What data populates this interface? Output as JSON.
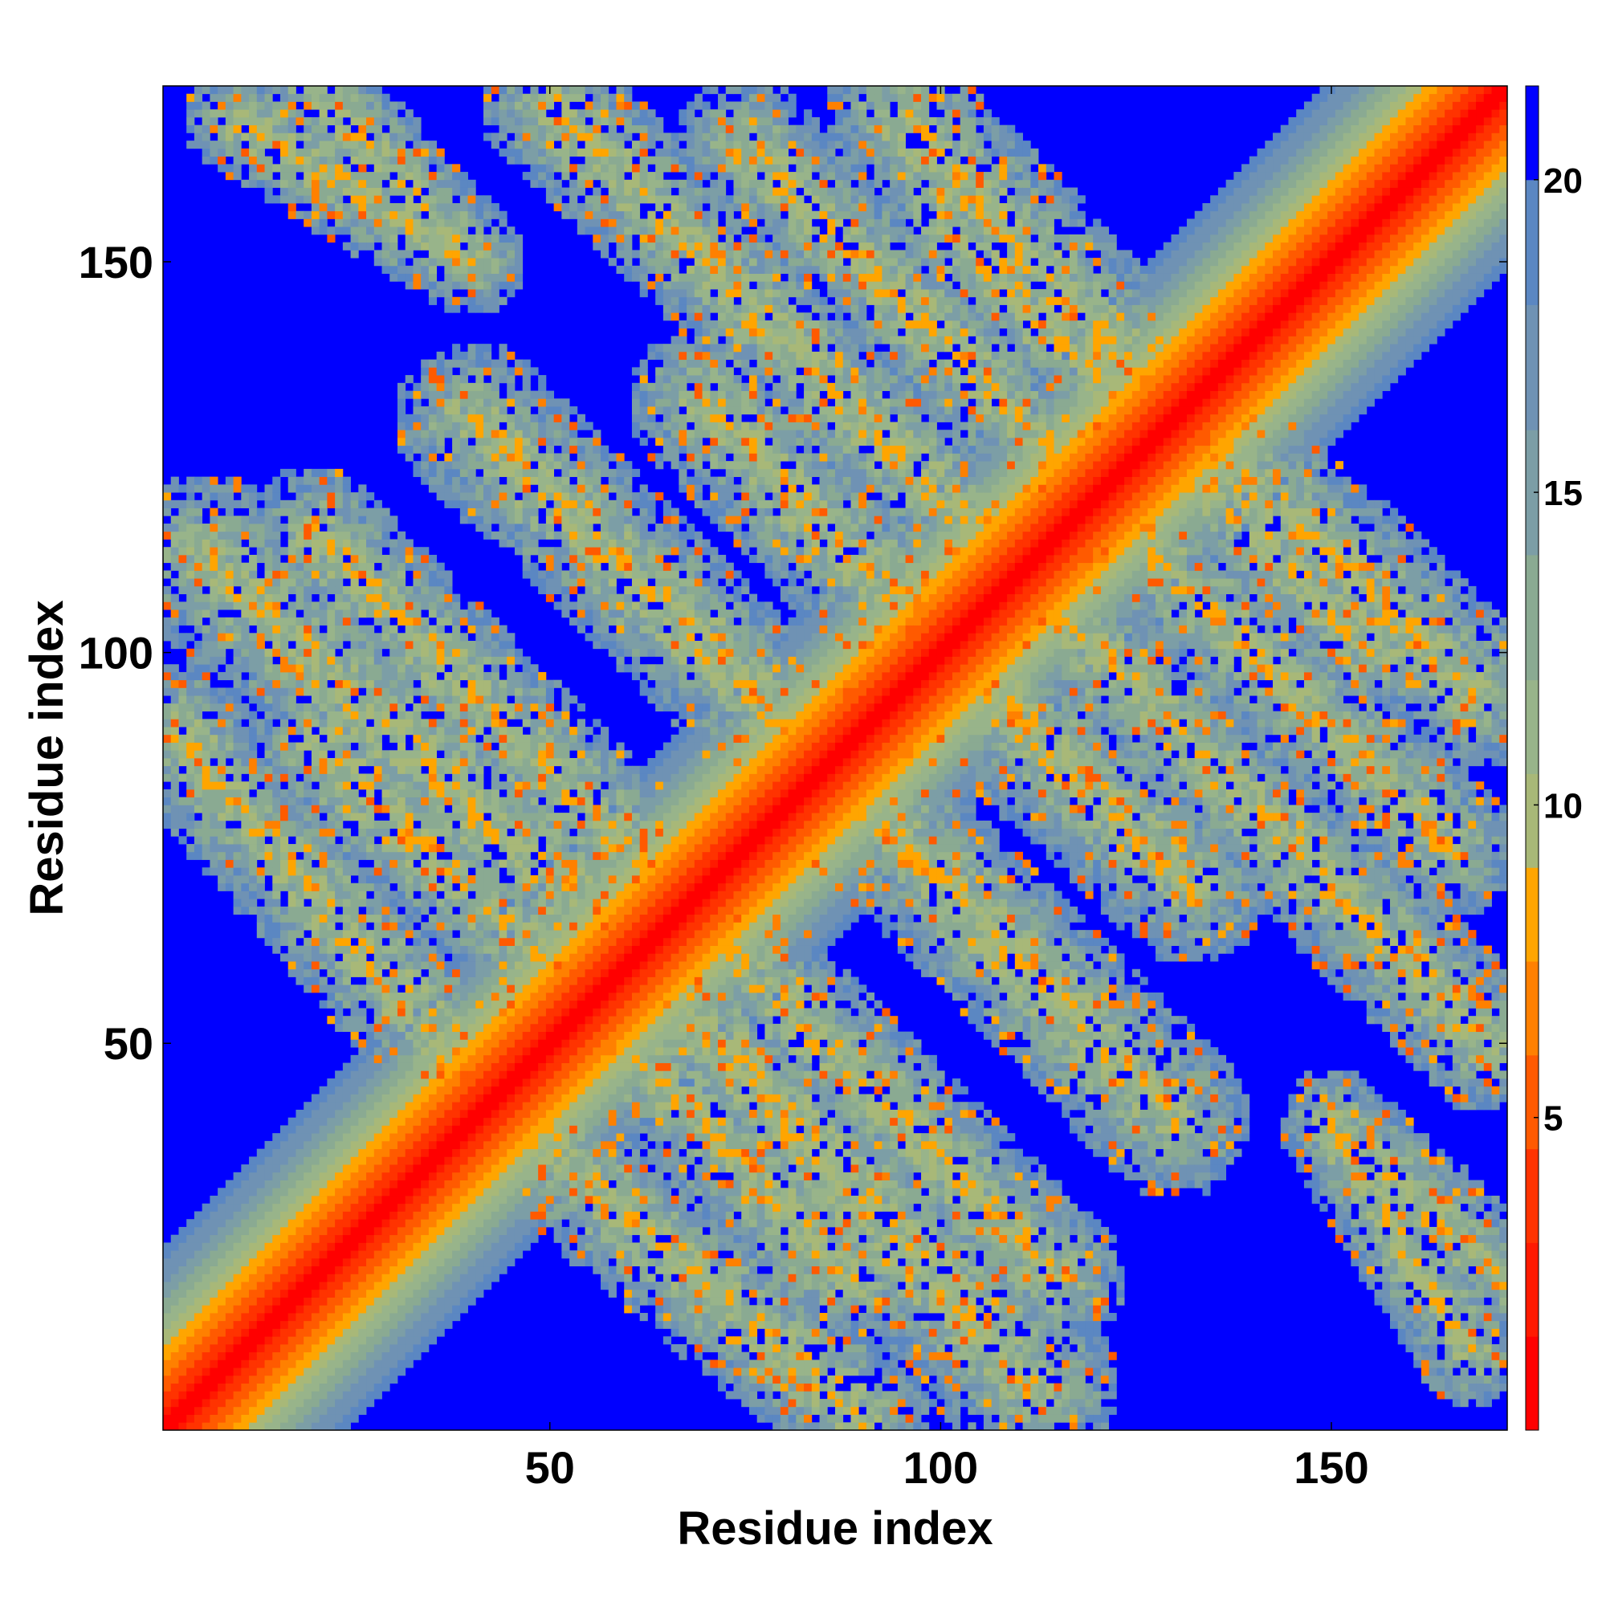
{
  "chart_data": {
    "type": "heatmap",
    "title": "",
    "xlabel": "Residue index",
    "ylabel": "Residue index",
    "xlim": [
      1,
      172
    ],
    "ylim": [
      1,
      172
    ],
    "x_ticks": [
      50,
      100,
      150
    ],
    "y_ticks": [
      50,
      100,
      150
    ],
    "colorbar": {
      "ticks": [
        5,
        10,
        15,
        20
      ],
      "range": [
        0,
        21.5
      ],
      "levels": [
        {
          "from": 0,
          "to": 1.5,
          "color": "#ff0000"
        },
        {
          "from": 1.5,
          "to": 3,
          "color": "#ff1a00"
        },
        {
          "from": 3,
          "to": 4.5,
          "color": "#ff3300"
        },
        {
          "from": 4.5,
          "to": 6,
          "color": "#ff5a00"
        },
        {
          "from": 6,
          "to": 7.5,
          "color": "#ff8000"
        },
        {
          "from": 7.5,
          "to": 9,
          "color": "#ffa500"
        },
        {
          "from": 9,
          "to": 10.5,
          "color": "#a8b878"
        },
        {
          "from": 10.5,
          "to": 12,
          "color": "#98b48a"
        },
        {
          "from": 12,
          "to": 14,
          "color": "#8aaa92"
        },
        {
          "from": 14,
          "to": 16,
          "color": "#7c9ea6"
        },
        {
          "from": 16,
          "to": 18,
          "color": "#6f92b4"
        },
        {
          "from": 18,
          "to": 20,
          "color": "#5b87c2"
        },
        {
          "from": 20,
          "to": 21.5,
          "color": "#0000ff"
        }
      ]
    },
    "contact_bands": [
      {
        "segment": "diagonal",
        "from": [
          1,
          1
        ],
        "to": [
          172,
          172
        ],
        "width": 12
      },
      {
        "segment": "anti-parallel",
        "from": [
          6,
          112
        ],
        "to": [
          60,
          62
        ],
        "width": 11
      },
      {
        "segment": "anti-parallel",
        "from": [
          20,
          88
        ],
        "to": [
          55,
          55
        ],
        "width": 9
      },
      {
        "segment": "anti-parallel",
        "from": [
          40,
          130
        ],
        "to": [
          85,
          86
        ],
        "width": 10
      },
      {
        "segment": "anti-parallel",
        "from": [
          70,
          132
        ],
        "to": [
          115,
          86
        ],
        "width": 10
      },
      {
        "segment": "anti-parallel",
        "from": [
          40,
          45
        ],
        "to": [
          90,
          2
        ],
        "width": 9
      },
      {
        "segment": "anti-parallel",
        "from": [
          65,
          70
        ],
        "to": [
          115,
          20
        ],
        "width": 9
      },
      {
        "segment": "anti-parallel",
        "from": [
          95,
          168
        ],
        "to": [
          140,
          120
        ],
        "width": 10
      },
      {
        "segment": "anti-parallel",
        "from": [
          110,
          110
        ],
        "to": [
          170,
          50
        ],
        "width": 9
      },
      {
        "segment": "anti-parallel",
        "from": [
          75,
          165
        ],
        "to": [
          125,
          115
        ],
        "width": 9
      },
      {
        "segment": "anti-parallel",
        "from": [
          105,
          150
        ],
        "to": [
          155,
          100
        ],
        "width": 8
      },
      {
        "segment": "anti-parallel",
        "from": [
          10,
          168
        ],
        "to": [
          40,
          150
        ],
        "width": 7
      },
      {
        "segment": "anti-parallel",
        "from": [
          150,
          40
        ],
        "to": [
          172,
          20
        ],
        "width": 7
      }
    ]
  }
}
